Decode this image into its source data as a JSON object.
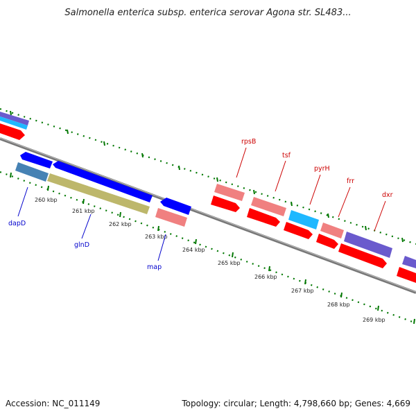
{
  "title": "Salmonella enterica subsp. enterica serovar Agona str. SL483...",
  "footer": {
    "accession": "Accession: NC_011149",
    "summary": "Topology: circular; Length: 4,798,660 bp; Genes: 4,669"
  },
  "ruler": {
    "labels": [
      "260 kbp",
      "261 kbp",
      "262 kbp",
      "263 kbp",
      "264 kbp",
      "265 kbp",
      "266 kbp",
      "267 kbp",
      "268 kbp",
      "269 kbp"
    ]
  },
  "gene_labels": {
    "forward": [
      "rpsB",
      "tsf",
      "pyrH",
      "frr",
      "dxr"
    ],
    "reverse": [
      "dapD",
      "glnD",
      "map"
    ]
  },
  "colors": {
    "cds_red": "#ff0000",
    "gene_pink": "#f08080",
    "blue": "#0000ff",
    "steel_blue": "#4682b4",
    "khaki": "#bdb76b",
    "slate_blue": "#6a5acd",
    "cyan": "#1fb8ff",
    "backbone": "#888888",
    "tick_green": "#007700",
    "label_red": "#cc0000",
    "label_blue": "#0000cc"
  }
}
